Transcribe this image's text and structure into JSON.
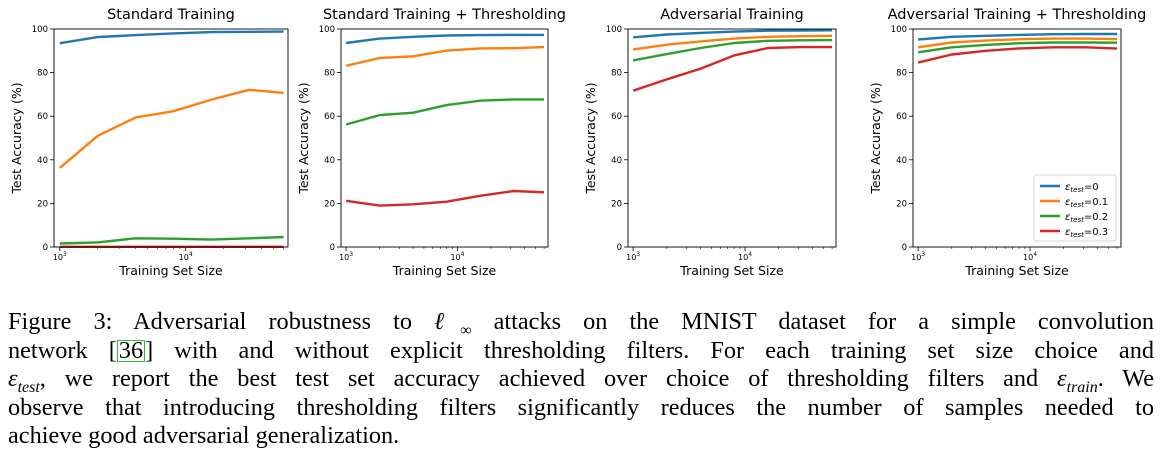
{
  "chart_data": [
    {
      "type": "line",
      "title": "Standard Training",
      "xlabel": "Training Set Size",
      "ylabel": "Test Accuracy (%)",
      "xscale": "log",
      "xlim": [
        900,
        65000
      ],
      "ylim": [
        0,
        100
      ],
      "yticks": [
        "0",
        "20",
        "40",
        "60",
        "80",
        "100"
      ],
      "xticks": [
        {
          "base": "10",
          "exp": "3",
          "value": 1000
        },
        {
          "base": "10",
          "exp": "4",
          "value": 10000
        }
      ],
      "x": [
        1000,
        2000,
        4000,
        8000,
        16000,
        32000,
        60000
      ],
      "legend": false,
      "series": [
        {
          "color": "#1f77b4",
          "values": [
            93.5,
            96.3,
            97.2,
            98.0,
            98.6,
            98.7,
            98.8
          ]
        },
        {
          "color": "#ff7f0e",
          "values": [
            36.3,
            51.0,
            59.4,
            62.3,
            67.6,
            72.1,
            70.7
          ]
        },
        {
          "color": "#2ca02c",
          "values": [
            1.6,
            2.1,
            4.0,
            3.8,
            3.4,
            4.0,
            4.6
          ]
        },
        {
          "color": "#d62728",
          "values": [
            0.1,
            0.1,
            0.1,
            0.1,
            0.1,
            0.1,
            0.1
          ]
        }
      ]
    },
    {
      "type": "line",
      "title": "Standard Training + Thresholding",
      "xlabel": "Training Set Size",
      "ylabel": "Test Accuracy (%)",
      "xscale": "log",
      "xlim": [
        900,
        65000
      ],
      "ylim": [
        0,
        100
      ],
      "yticks": [
        "0",
        "20",
        "40",
        "60",
        "80",
        "100"
      ],
      "xticks": [
        {
          "base": "10",
          "exp": "3",
          "value": 1000
        },
        {
          "base": "10",
          "exp": "4",
          "value": 10000
        }
      ],
      "x": [
        1000,
        2000,
        4000,
        8000,
        16000,
        32000,
        60000
      ],
      "legend": false,
      "series": [
        {
          "color": "#1f77b4",
          "values": [
            93.6,
            95.6,
            96.4,
            97.0,
            97.2,
            97.3,
            97.3
          ]
        },
        {
          "color": "#ff7f0e",
          "values": [
            83.1,
            86.7,
            87.5,
            90.1,
            91.1,
            91.2,
            91.7
          ]
        },
        {
          "color": "#2ca02c",
          "values": [
            56.2,
            60.5,
            61.6,
            65.1,
            67.1,
            67.7,
            67.7
          ]
        },
        {
          "color": "#d62728",
          "values": [
            21.2,
            19.0,
            19.6,
            20.8,
            23.5,
            25.7,
            25.1
          ]
        }
      ]
    },
    {
      "type": "line",
      "title": "Adversarial Training",
      "xlabel": "Training Set Size",
      "ylabel": "Test Accuracy (%)",
      "xscale": "log",
      "xlim": [
        900,
        65000
      ],
      "ylim": [
        0,
        100
      ],
      "yticks": [
        "0",
        "20",
        "40",
        "60",
        "80",
        "100"
      ],
      "xticks": [
        {
          "base": "10",
          "exp": "3",
          "value": 1000
        },
        {
          "base": "10",
          "exp": "4",
          "value": 10000
        }
      ],
      "x": [
        1000,
        2000,
        4000,
        8000,
        16000,
        32000,
        60000
      ],
      "legend": false,
      "series": [
        {
          "color": "#1f77b4",
          "values": [
            96.2,
            97.5,
            98.2,
            98.8,
            99.2,
            99.3,
            99.4
          ]
        },
        {
          "color": "#ff7f0e",
          "values": [
            90.6,
            92.8,
            94.3,
            95.6,
            96.4,
            96.7,
            96.9
          ]
        },
        {
          "color": "#2ca02c",
          "values": [
            85.6,
            88.5,
            91.3,
            93.6,
            94.6,
            94.8,
            94.9
          ]
        },
        {
          "color": "#d62728",
          "values": [
            71.7,
            76.9,
            81.8,
            87.9,
            91.3,
            91.7,
            91.7
          ]
        }
      ]
    },
    {
      "type": "line",
      "title": "Adversarial Training + Thresholding",
      "xlabel": "Training Set Size",
      "ylabel": "Test Accuracy (%)",
      "xscale": "log",
      "xlim": [
        900,
        65000
      ],
      "ylim": [
        0,
        100
      ],
      "yticks": [
        "0",
        "20",
        "40",
        "60",
        "80",
        "100"
      ],
      "xticks": [
        {
          "base": "10",
          "exp": "3",
          "value": 1000
        },
        {
          "base": "10",
          "exp": "4",
          "value": 10000
        }
      ],
      "x": [
        1000,
        2000,
        4000,
        8000,
        16000,
        32000,
        60000
      ],
      "legend": true,
      "legend_placement": "lower-right",
      "series": [
        {
          "color": "#1f77b4",
          "values": [
            95.2,
            96.4,
            96.9,
            97.3,
            97.6,
            97.7,
            97.7
          ]
        },
        {
          "color": "#ff7f0e",
          "values": [
            91.6,
            93.8,
            94.7,
            95.3,
            95.6,
            95.6,
            95.3
          ]
        },
        {
          "color": "#2ca02c",
          "values": [
            89.3,
            91.6,
            92.7,
            93.5,
            93.8,
            93.8,
            93.7
          ]
        },
        {
          "color": "#d62728",
          "values": [
            84.6,
            88.3,
            90.0,
            91.1,
            91.6,
            91.6,
            91.0
          ]
        }
      ]
    }
  ],
  "legend": {
    "symbol": "ε",
    "subscript": "test",
    "entries": [
      {
        "value": "=0",
        "color": "#1f77b4"
      },
      {
        "value": "=0.1",
        "color": "#ff7f0e"
      },
      {
        "value": "=0.2",
        "color": "#2ca02c"
      },
      {
        "value": "=0.3",
        "color": "#d62728"
      }
    ]
  },
  "caption": {
    "line1_a": "Figure 3: Adversarial robustness to ",
    "line1_sym": "ℓ",
    "line1_sub": "∞",
    "line1_b": " attacks on the MNIST dataset for a simple convolution",
    "line2_a": "network [",
    "line2_ref": "36",
    "line2_b": "] with and without explicit thresholding filters. For each training set size choice and",
    "line3_sym": "ε",
    "line3_sub": "test",
    "line3_a": ", we report the best test set accuracy achieved over choice of thresholding filters and ",
    "line3_sym2": "ε",
    "line3_sub2": "train",
    "line3_b": ". We",
    "line4": "observe that introducing thresholding filters significantly reduces the number of samples needed to",
    "line5": "achieve good adversarial generalization."
  }
}
